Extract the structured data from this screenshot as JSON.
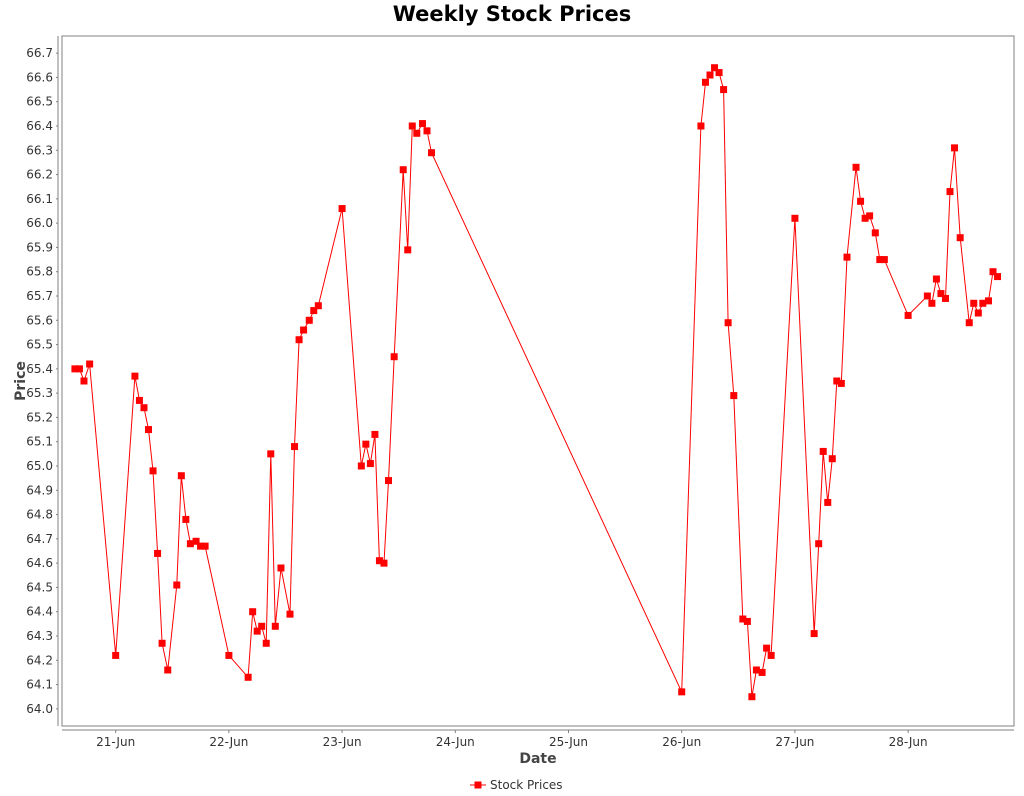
{
  "chart_data": {
    "type": "line",
    "title": "Weekly Stock Prices",
    "xlabel": "Date",
    "ylabel": "Price",
    "x_tick_labels": [
      "21-Jun",
      "22-Jun",
      "23-Jun",
      "24-Jun",
      "25-Jun",
      "26-Jun",
      "27-Jun",
      "28-Jun"
    ],
    "xlim": [
      20.57,
      28.9
    ],
    "ylim": [
      63.95,
      66.75
    ],
    "grid": false,
    "legend": {
      "placement": "bottom-center"
    },
    "series": [
      {
        "name": "Stock Prices",
        "color": "#ff0000",
        "marker": "square",
        "x_unit": "day of June",
        "x": [
          20.64,
          20.68,
          20.72,
          20.77,
          21.0,
          21.17,
          21.21,
          21.25,
          21.29,
          21.33,
          21.37,
          21.41,
          21.46,
          21.54,
          21.58,
          21.62,
          21.66,
          21.71,
          21.75,
          21.79,
          22.0,
          22.17,
          22.21,
          22.25,
          22.29,
          22.33,
          22.37,
          22.41,
          22.46,
          22.54,
          22.58,
          22.62,
          22.66,
          22.71,
          22.75,
          22.79,
          23.0,
          23.17,
          23.21,
          23.25,
          23.29,
          23.33,
          23.37,
          23.41,
          23.46,
          23.54,
          23.58,
          23.62,
          23.66,
          23.71,
          23.75,
          23.79,
          26.0,
          26.17,
          26.21,
          26.25,
          26.29,
          26.33,
          26.37,
          26.41,
          26.46,
          26.54,
          26.58,
          26.62,
          26.66,
          26.71,
          26.75,
          26.79,
          27.0,
          27.17,
          27.21,
          27.25,
          27.29,
          27.33,
          27.37,
          27.41,
          27.46,
          27.54,
          27.58,
          27.62,
          27.66,
          27.71,
          27.75,
          27.79,
          28.0,
          28.17,
          28.21,
          28.25,
          28.29,
          28.33,
          28.37,
          28.41,
          28.46,
          28.54,
          28.58,
          28.62,
          28.66,
          28.71,
          28.75,
          28.79
        ],
        "values": [
          65.4,
          65.4,
          65.35,
          65.42,
          64.22,
          65.37,
          65.27,
          65.24,
          65.15,
          64.98,
          64.64,
          64.27,
          64.16,
          64.51,
          64.96,
          64.78,
          64.68,
          64.69,
          64.67,
          64.67,
          64.22,
          64.13,
          64.4,
          64.32,
          64.34,
          64.27,
          65.05,
          64.34,
          64.58,
          64.39,
          65.08,
          65.52,
          65.56,
          65.6,
          65.64,
          65.66,
          66.06,
          65.0,
          65.09,
          65.01,
          65.13,
          64.61,
          64.6,
          64.94,
          65.45,
          66.22,
          65.89,
          66.4,
          66.37,
          66.41,
          66.38,
          66.29,
          64.07,
          66.4,
          66.58,
          66.61,
          66.64,
          66.62,
          66.55,
          65.59,
          65.29,
          64.37,
          64.36,
          64.05,
          64.16,
          64.15,
          64.25,
          64.22,
          66.02,
          64.31,
          64.68,
          65.06,
          64.85,
          65.03,
          65.35,
          65.34,
          65.86,
          66.23,
          66.09,
          66.02,
          66.03,
          65.96,
          65.85,
          65.85,
          65.62,
          65.7,
          65.67,
          65.77,
          65.71,
          65.69,
          66.13,
          66.31,
          65.94,
          65.59,
          65.67,
          65.63,
          65.67,
          65.68,
          65.8,
          65.78
        ]
      }
    ]
  }
}
